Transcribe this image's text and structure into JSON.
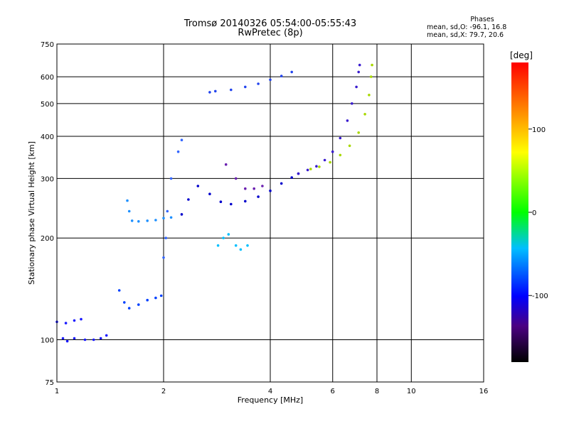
{
  "title_lines": [
    "Tromsø 20140326 05:54:00-05:55:43",
    "RwPretec (8p)"
  ],
  "stats": {
    "heading": "Phases",
    "o_line": "mean, sd,O: -96.1, 16.8",
    "x_line": "mean, sd,X:  79.7, 20.6"
  },
  "chart_data": {
    "type": "scatter",
    "xlabel": "Frequency [MHz]",
    "ylabel": "Stationary phase Virtual Height [km]",
    "x_scale": "log",
    "y_scale": "log",
    "xlim": [
      1,
      16
    ],
    "ylim": [
      75,
      750
    ],
    "x_ticks": [
      1,
      2,
      4,
      6,
      8,
      10,
      16
    ],
    "x_tick_labels": [
      "1",
      "2",
      "4",
      "6",
      "8",
      "10",
      "16"
    ],
    "y_ticks": [
      75,
      100,
      200,
      300,
      400,
      500,
      600,
      750
    ],
    "y_tick_labels": [
      "75",
      "100",
      "200",
      "300",
      "400",
      "500",
      "600",
      "750"
    ],
    "grid": true,
    "colorbar": {
      "label": "[deg]",
      "range": [
        -180,
        180
      ],
      "ticks": [
        100,
        0,
        -100
      ],
      "tick_labels": [
        "100",
        "0",
        "-100"
      ]
    },
    "series": [
      {
        "points": [
          [
            1.0,
            113
          ],
          [
            1.06,
            112
          ],
          [
            1.12,
            114
          ],
          [
            1.17,
            115
          ],
          [
            1.04,
            101
          ],
          [
            1.07,
            99
          ],
          [
            1.12,
            101
          ],
          [
            1.2,
            100
          ],
          [
            1.27,
            100
          ],
          [
            1.33,
            101
          ],
          [
            1.38,
            103
          ]
        ]
      },
      {
        "points": [
          [
            1.5,
            140
          ],
          [
            1.55,
            129
          ],
          [
            1.6,
            124
          ],
          [
            1.7,
            127
          ],
          [
            1.8,
            131
          ],
          [
            1.9,
            133
          ],
          [
            1.97,
            135
          ]
        ]
      },
      {
        "points": [
          [
            1.58,
            258
          ],
          [
            1.6,
            240
          ],
          [
            1.63,
            225
          ],
          [
            1.7,
            224
          ],
          [
            1.8,
            225
          ],
          [
            1.9,
            226
          ],
          [
            2.0,
            229
          ],
          [
            2.1,
            230
          ]
        ]
      },
      {
        "points": [
          [
            2.0,
            175
          ],
          [
            2.03,
            200
          ],
          [
            2.05,
            240
          ],
          [
            2.1,
            300
          ],
          [
            2.2,
            360
          ],
          [
            2.25,
            390
          ]
        ]
      },
      {
        "points": [
          [
            2.25,
            235
          ],
          [
            2.35,
            260
          ],
          [
            2.5,
            285
          ],
          [
            2.7,
            270
          ],
          [
            2.9,
            256
          ],
          [
            3.1,
            252
          ],
          [
            3.4,
            257
          ],
          [
            3.7,
            265
          ],
          [
            4.0,
            276
          ],
          [
            4.3,
            290
          ],
          [
            4.6,
            302
          ],
          [
            4.8,
            310
          ]
        ]
      },
      {
        "points": [
          [
            2.7,
            540
          ],
          [
            2.8,
            544
          ],
          [
            3.1,
            549
          ],
          [
            3.4,
            560
          ],
          [
            3.7,
            572
          ],
          [
            4.0,
            588
          ],
          [
            4.3,
            603
          ],
          [
            4.6,
            620
          ]
        ]
      },
      {
        "points": [
          [
            4.8,
            310
          ],
          [
            5.1,
            318
          ],
          [
            5.4,
            326
          ],
          [
            5.7,
            340
          ],
          [
            6.0,
            360
          ],
          [
            6.3,
            395
          ],
          [
            6.6,
            445
          ],
          [
            6.8,
            500
          ],
          [
            7.0,
            560
          ],
          [
            7.1,
            620
          ],
          [
            7.15,
            650
          ]
        ]
      },
      {
        "points": [
          [
            5.2,
            320
          ],
          [
            5.5,
            325
          ],
          [
            5.9,
            335
          ],
          [
            6.3,
            352
          ],
          [
            6.7,
            375
          ],
          [
            7.1,
            410
          ],
          [
            7.4,
            465
          ],
          [
            7.6,
            530
          ],
          [
            7.7,
            600
          ],
          [
            7.75,
            650
          ]
        ]
      },
      {
        "points": [
          [
            2.85,
            190
          ],
          [
            2.95,
            200
          ],
          [
            3.05,
            205
          ],
          [
            3.2,
            190
          ],
          [
            3.3,
            185
          ],
          [
            3.45,
            190
          ]
        ]
      },
      {
        "points": [
          [
            3.0,
            330
          ],
          [
            3.2,
            300
          ],
          [
            3.4,
            280
          ],
          [
            3.6,
            280
          ],
          [
            3.8,
            285
          ]
        ]
      }
    ]
  }
}
